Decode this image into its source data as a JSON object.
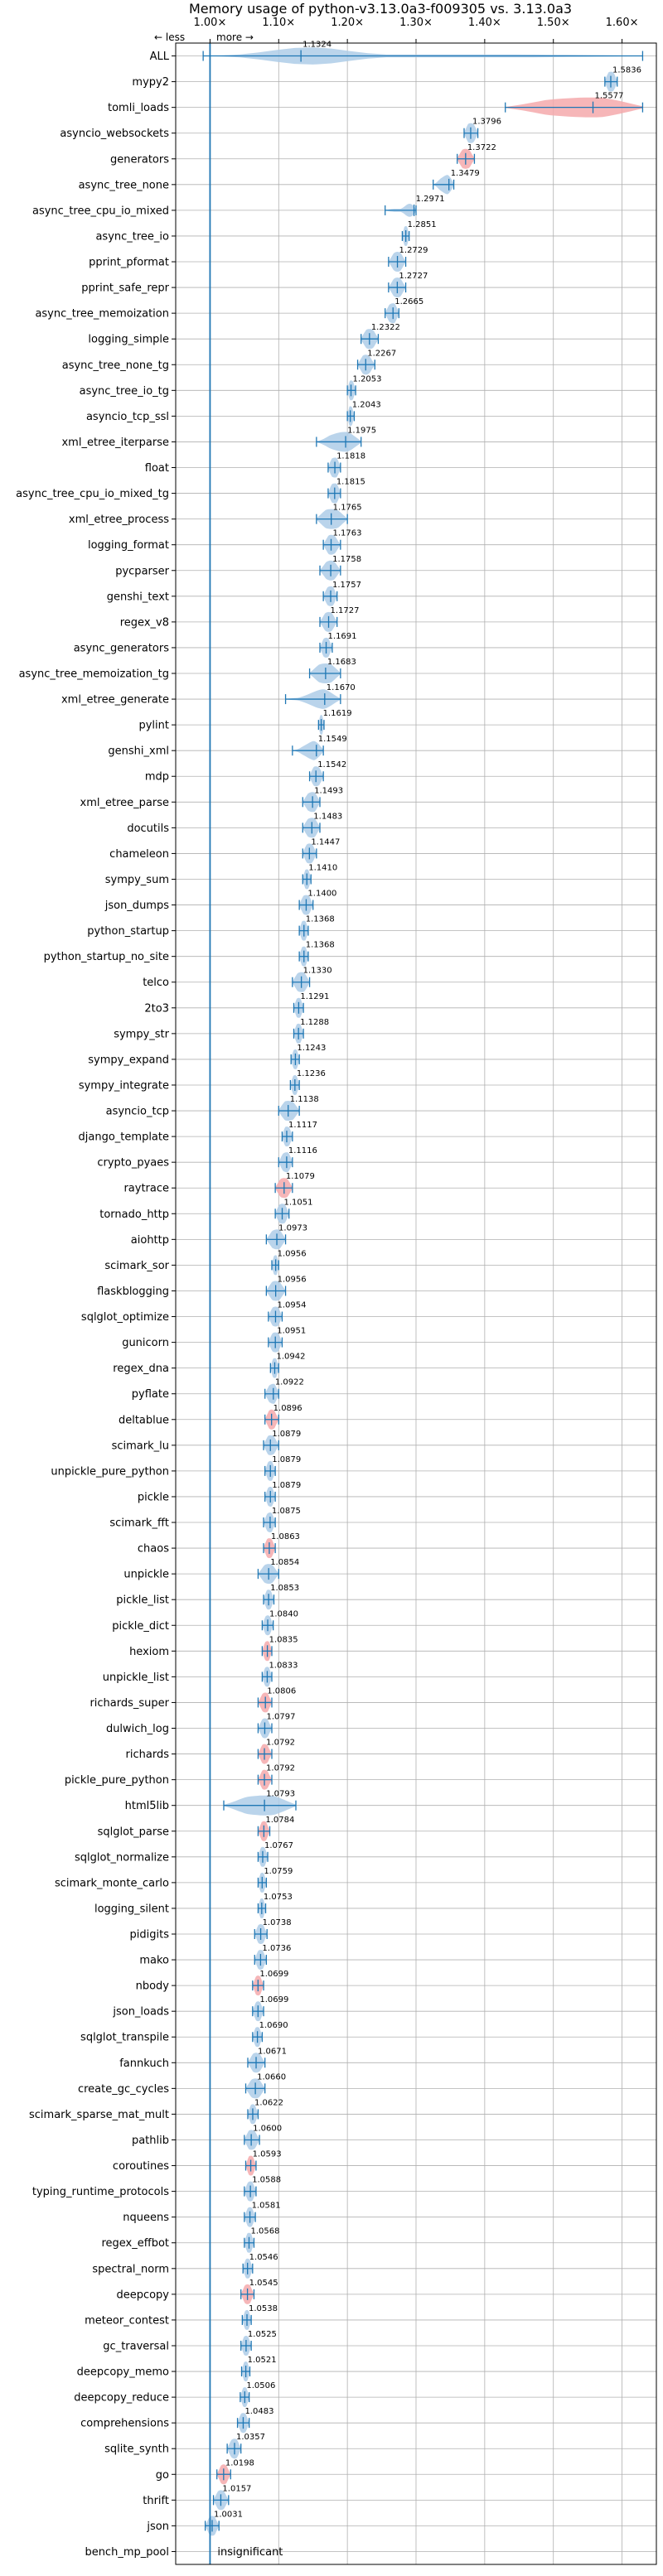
{
  "chart_data": {
    "type": "violin",
    "title": "Memory usage of python-v3.13.0a3-f009305 vs. 3.13.0a3",
    "xlim": [
      0.95,
      1.65
    ],
    "xticks": [
      1.0,
      1.1,
      1.2,
      1.3,
      1.4,
      1.5,
      1.6
    ],
    "xtick_labels": [
      "1.00×",
      "1.10×",
      "1.20×",
      "1.30×",
      "1.40×",
      "1.50×",
      "1.60×"
    ],
    "direction_labels": {
      "less": "← less",
      "more": "more →"
    },
    "grid": true,
    "reference_line": 1.0,
    "colors": {
      "faster": "#aecde8",
      "slower": "#f4a9ab",
      "median": "#1f77b4",
      "line": "#1f77b4"
    },
    "benchmarks": [
      {
        "name": "ALL",
        "value": 1.1324,
        "label": "1.1324",
        "min": 0.99,
        "max": 1.63,
        "spread": 0.06,
        "status": "better"
      },
      {
        "name": "mypy2",
        "value": 1.5836,
        "label": "1.5836",
        "min": 1.575,
        "max": 1.593,
        "spread": 0.01,
        "status": "better"
      },
      {
        "name": "tomli_loads",
        "value": 1.5577,
        "label": "1.5577",
        "min": 1.43,
        "max": 1.63,
        "spread": 0.09,
        "status": "worse"
      },
      {
        "name": "asyncio_websockets",
        "value": 1.3796,
        "label": "1.3796",
        "min": 1.37,
        "max": 1.39,
        "spread": 0.01,
        "status": "better"
      },
      {
        "name": "generators",
        "value": 1.3722,
        "label": "1.3722",
        "min": 1.36,
        "max": 1.385,
        "spread": 0.012,
        "status": "worse"
      },
      {
        "name": "async_tree_none",
        "value": 1.3479,
        "label": "1.3479",
        "min": 1.325,
        "max": 1.355,
        "spread": 0.012,
        "status": "better"
      },
      {
        "name": "async_tree_cpu_io_mixed",
        "value": 1.2971,
        "label": "1.2971",
        "min": 1.255,
        "max": 1.3,
        "spread": 0.01,
        "status": "better"
      },
      {
        "name": "async_tree_io",
        "value": 1.2851,
        "label": "1.2851",
        "min": 1.28,
        "max": 1.29,
        "spread": 0.005,
        "status": "better"
      },
      {
        "name": "pprint_pformat",
        "value": 1.2729,
        "label": "1.2729",
        "min": 1.26,
        "max": 1.285,
        "spread": 0.01,
        "status": "better"
      },
      {
        "name": "pprint_safe_repr",
        "value": 1.2727,
        "label": "1.2727",
        "min": 1.26,
        "max": 1.285,
        "spread": 0.01,
        "status": "better"
      },
      {
        "name": "async_tree_memoization",
        "value": 1.2665,
        "label": "1.2665",
        "min": 1.255,
        "max": 1.275,
        "spread": 0.01,
        "status": "better"
      },
      {
        "name": "logging_simple",
        "value": 1.2322,
        "label": "1.2322",
        "min": 1.22,
        "max": 1.245,
        "spread": 0.012,
        "status": "better"
      },
      {
        "name": "async_tree_none_tg",
        "value": 1.2267,
        "label": "1.2267",
        "min": 1.215,
        "max": 1.24,
        "spread": 0.01,
        "status": "better"
      },
      {
        "name": "async_tree_io_tg",
        "value": 1.2053,
        "label": "1.2053",
        "min": 1.2,
        "max": 1.212,
        "spread": 0.006,
        "status": "better"
      },
      {
        "name": "asyncio_tcp_ssl",
        "value": 1.2043,
        "label": "1.2043",
        "min": 1.2,
        "max": 1.21,
        "spread": 0.005,
        "status": "better"
      },
      {
        "name": "xml_etree_iterparse",
        "value": 1.1975,
        "label": "1.1975",
        "min": 1.155,
        "max": 1.22,
        "spread": 0.025,
        "status": "better"
      },
      {
        "name": "float",
        "value": 1.1818,
        "label": "1.1818",
        "min": 1.172,
        "max": 1.19,
        "spread": 0.01,
        "status": "better"
      },
      {
        "name": "async_tree_cpu_io_mixed_tg",
        "value": 1.1815,
        "label": "1.1815",
        "min": 1.172,
        "max": 1.19,
        "spread": 0.01,
        "status": "better"
      },
      {
        "name": "xml_etree_process",
        "value": 1.1765,
        "label": "1.1765",
        "min": 1.155,
        "max": 1.2,
        "spread": 0.02,
        "status": "better"
      },
      {
        "name": "logging_format",
        "value": 1.1763,
        "label": "1.1763",
        "min": 1.165,
        "max": 1.19,
        "spread": 0.01,
        "status": "better"
      },
      {
        "name": "pycparser",
        "value": 1.1758,
        "label": "1.1758",
        "min": 1.16,
        "max": 1.19,
        "spread": 0.012,
        "status": "better"
      },
      {
        "name": "genshi_text",
        "value": 1.1757,
        "label": "1.1757",
        "min": 1.165,
        "max": 1.185,
        "spread": 0.01,
        "status": "better"
      },
      {
        "name": "regex_v8",
        "value": 1.1727,
        "label": "1.1727",
        "min": 1.16,
        "max": 1.185,
        "spread": 0.01,
        "status": "better"
      },
      {
        "name": "async_generators",
        "value": 1.1691,
        "label": "1.1691",
        "min": 1.16,
        "max": 1.178,
        "spread": 0.008,
        "status": "better"
      },
      {
        "name": "async_tree_memoization_tg",
        "value": 1.1683,
        "label": "1.1683",
        "min": 1.145,
        "max": 1.19,
        "spread": 0.02,
        "status": "better"
      },
      {
        "name": "xml_etree_generate",
        "value": 1.167,
        "label": "1.1670",
        "min": 1.11,
        "max": 1.19,
        "spread": 0.02,
        "status": "better"
      },
      {
        "name": "pylint",
        "value": 1.1619,
        "label": "1.1619",
        "min": 1.158,
        "max": 1.166,
        "spread": 0.004,
        "status": "better"
      },
      {
        "name": "genshi_xml",
        "value": 1.1549,
        "label": "1.1549",
        "min": 1.12,
        "max": 1.165,
        "spread": 0.015,
        "status": "better"
      },
      {
        "name": "mdp",
        "value": 1.1542,
        "label": "1.1542",
        "min": 1.145,
        "max": 1.165,
        "spread": 0.01,
        "status": "better"
      },
      {
        "name": "xml_etree_parse",
        "value": 1.1493,
        "label": "1.1493",
        "min": 1.135,
        "max": 1.16,
        "spread": 0.012,
        "status": "better"
      },
      {
        "name": "docutils",
        "value": 1.1483,
        "label": "1.1483",
        "min": 1.135,
        "max": 1.16,
        "spread": 0.012,
        "status": "better"
      },
      {
        "name": "chameleon",
        "value": 1.1447,
        "label": "1.1447",
        "min": 1.135,
        "max": 1.155,
        "spread": 0.01,
        "status": "better"
      },
      {
        "name": "sympy_sum",
        "value": 1.141,
        "label": "1.1410",
        "min": 1.135,
        "max": 1.147,
        "spread": 0.006,
        "status": "better"
      },
      {
        "name": "json_dumps",
        "value": 1.14,
        "label": "1.1400",
        "min": 1.13,
        "max": 1.15,
        "spread": 0.01,
        "status": "better"
      },
      {
        "name": "python_startup",
        "value": 1.1368,
        "label": "1.1368",
        "min": 1.13,
        "max": 1.143,
        "spread": 0.007,
        "status": "better"
      },
      {
        "name": "python_startup_no_site",
        "value": 1.1368,
        "label": "1.1368",
        "min": 1.13,
        "max": 1.143,
        "spread": 0.007,
        "status": "better"
      },
      {
        "name": "telco",
        "value": 1.133,
        "label": "1.1330",
        "min": 1.12,
        "max": 1.145,
        "spread": 0.012,
        "status": "better"
      },
      {
        "name": "2to3",
        "value": 1.1291,
        "label": "1.1291",
        "min": 1.122,
        "max": 1.136,
        "spread": 0.007,
        "status": "better"
      },
      {
        "name": "sympy_str",
        "value": 1.1288,
        "label": "1.1288",
        "min": 1.122,
        "max": 1.136,
        "spread": 0.007,
        "status": "better"
      },
      {
        "name": "sympy_expand",
        "value": 1.1243,
        "label": "1.1243",
        "min": 1.118,
        "max": 1.13,
        "spread": 0.006,
        "status": "better"
      },
      {
        "name": "sympy_integrate",
        "value": 1.1236,
        "label": "1.1236",
        "min": 1.117,
        "max": 1.13,
        "spread": 0.006,
        "status": "better"
      },
      {
        "name": "asyncio_tcp",
        "value": 1.1138,
        "label": "1.1138",
        "min": 1.1,
        "max": 1.13,
        "spread": 0.015,
        "status": "better"
      },
      {
        "name": "django_template",
        "value": 1.1117,
        "label": "1.1117",
        "min": 1.105,
        "max": 1.12,
        "spread": 0.008,
        "status": "better"
      },
      {
        "name": "crypto_pyaes",
        "value": 1.1116,
        "label": "1.1116",
        "min": 1.1,
        "max": 1.12,
        "spread": 0.01,
        "status": "better"
      },
      {
        "name": "raytrace",
        "value": 1.1079,
        "label": "1.1079",
        "min": 1.095,
        "max": 1.12,
        "spread": 0.012,
        "status": "worse"
      },
      {
        "name": "tornado_http",
        "value": 1.1051,
        "label": "1.1051",
        "min": 1.095,
        "max": 1.115,
        "spread": 0.01,
        "status": "better"
      },
      {
        "name": "aiohttp",
        "value": 1.0973,
        "label": "1.0973",
        "min": 1.082,
        "max": 1.11,
        "spread": 0.012,
        "status": "better"
      },
      {
        "name": "scimark_sor",
        "value": 1.0956,
        "label": "1.0956",
        "min": 1.09,
        "max": 1.1,
        "spread": 0.006,
        "status": "better"
      },
      {
        "name": "flaskblogging",
        "value": 1.0956,
        "label": "1.0956",
        "min": 1.082,
        "max": 1.11,
        "spread": 0.012,
        "status": "better"
      },
      {
        "name": "sqlglot_optimize",
        "value": 1.0954,
        "label": "1.0954",
        "min": 1.085,
        "max": 1.105,
        "spread": 0.01,
        "status": "better"
      },
      {
        "name": "gunicorn",
        "value": 1.0951,
        "label": "1.0951",
        "min": 1.085,
        "max": 1.105,
        "spread": 0.01,
        "status": "better"
      },
      {
        "name": "regex_dna",
        "value": 1.0942,
        "label": "1.0942",
        "min": 1.088,
        "max": 1.1,
        "spread": 0.006,
        "status": "better"
      },
      {
        "name": "pyflate",
        "value": 1.0922,
        "label": "1.0922",
        "min": 1.08,
        "max": 1.1,
        "spread": 0.01,
        "status": "better"
      },
      {
        "name": "deltablue",
        "value": 1.0896,
        "label": "1.0896",
        "min": 1.08,
        "max": 1.1,
        "spread": 0.008,
        "status": "worse"
      },
      {
        "name": "scimark_lu",
        "value": 1.0879,
        "label": "1.0879",
        "min": 1.078,
        "max": 1.1,
        "spread": 0.01,
        "status": "better"
      },
      {
        "name": "unpickle_pure_python",
        "value": 1.0879,
        "label": "1.0879",
        "min": 1.08,
        "max": 1.095,
        "spread": 0.007,
        "status": "better"
      },
      {
        "name": "pickle",
        "value": 1.0879,
        "label": "1.0879",
        "min": 1.08,
        "max": 1.095,
        "spread": 0.007,
        "status": "better"
      },
      {
        "name": "scimark_fft",
        "value": 1.0875,
        "label": "1.0875",
        "min": 1.078,
        "max": 1.095,
        "spread": 0.008,
        "status": "better"
      },
      {
        "name": "chaos",
        "value": 1.0863,
        "label": "1.0863",
        "min": 1.078,
        "max": 1.095,
        "spread": 0.008,
        "status": "worse"
      },
      {
        "name": "unpickle",
        "value": 1.0854,
        "label": "1.0854",
        "min": 1.07,
        "max": 1.1,
        "spread": 0.012,
        "status": "better"
      },
      {
        "name": "pickle_list",
        "value": 1.0853,
        "label": "1.0853",
        "min": 1.078,
        "max": 1.093,
        "spread": 0.007,
        "status": "better"
      },
      {
        "name": "pickle_dict",
        "value": 1.084,
        "label": "1.0840",
        "min": 1.076,
        "max": 1.092,
        "spread": 0.007,
        "status": "better"
      },
      {
        "name": "hexiom",
        "value": 1.0835,
        "label": "1.0835",
        "min": 1.076,
        "max": 1.09,
        "spread": 0.007,
        "status": "worse"
      },
      {
        "name": "unpickle_list",
        "value": 1.0833,
        "label": "1.0833",
        "min": 1.076,
        "max": 1.09,
        "spread": 0.007,
        "status": "better"
      },
      {
        "name": "richards_super",
        "value": 1.0806,
        "label": "1.0806",
        "min": 1.07,
        "max": 1.09,
        "spread": 0.008,
        "status": "worse"
      },
      {
        "name": "dulwich_log",
        "value": 1.0797,
        "label": "1.0797",
        "min": 1.07,
        "max": 1.09,
        "spread": 0.008,
        "status": "better"
      },
      {
        "name": "richards",
        "value": 1.0792,
        "label": "1.0792",
        "min": 1.07,
        "max": 1.09,
        "spread": 0.008,
        "status": "worse"
      },
      {
        "name": "pickle_pure_python",
        "value": 1.0792,
        "label": "1.0792",
        "min": 1.07,
        "max": 1.09,
        "spread": 0.008,
        "status": "worse"
      },
      {
        "name": "html5lib",
        "value": 1.0793,
        "label": "1.0793",
        "min": 1.02,
        "max": 1.125,
        "spread": 0.045,
        "status": "better"
      },
      {
        "name": "sqlglot_parse",
        "value": 1.0784,
        "label": "1.0784",
        "min": 1.07,
        "max": 1.087,
        "spread": 0.007,
        "status": "worse"
      },
      {
        "name": "sqlglot_normalize",
        "value": 1.0767,
        "label": "1.0767",
        "min": 1.07,
        "max": 1.084,
        "spread": 0.007,
        "status": "better"
      },
      {
        "name": "scimark_monte_carlo",
        "value": 1.0759,
        "label": "1.0759",
        "min": 1.07,
        "max": 1.082,
        "spread": 0.006,
        "status": "better"
      },
      {
        "name": "logging_silent",
        "value": 1.0753,
        "label": "1.0753",
        "min": 1.07,
        "max": 1.081,
        "spread": 0.006,
        "status": "better"
      },
      {
        "name": "pidigits",
        "value": 1.0738,
        "label": "1.0738",
        "min": 1.065,
        "max": 1.083,
        "spread": 0.008,
        "status": "better"
      },
      {
        "name": "mako",
        "value": 1.0736,
        "label": "1.0736",
        "min": 1.065,
        "max": 1.082,
        "spread": 0.008,
        "status": "better"
      },
      {
        "name": "nbody",
        "value": 1.0699,
        "label": "1.0699",
        "min": 1.062,
        "max": 1.078,
        "spread": 0.007,
        "status": "worse"
      },
      {
        "name": "json_loads",
        "value": 1.0699,
        "label": "1.0699",
        "min": 1.062,
        "max": 1.078,
        "spread": 0.007,
        "status": "better"
      },
      {
        "name": "sqlglot_transpile",
        "value": 1.069,
        "label": "1.0690",
        "min": 1.062,
        "max": 1.076,
        "spread": 0.007,
        "status": "better"
      },
      {
        "name": "fannkuch",
        "value": 1.0671,
        "label": "1.0671",
        "min": 1.055,
        "max": 1.08,
        "spread": 0.01,
        "status": "better"
      },
      {
        "name": "create_gc_cycles",
        "value": 1.066,
        "label": "1.0660",
        "min": 1.052,
        "max": 1.08,
        "spread": 0.012,
        "status": "better"
      },
      {
        "name": "scimark_sparse_mat_mult",
        "value": 1.0622,
        "label": "1.0622",
        "min": 1.055,
        "max": 1.07,
        "spread": 0.007,
        "status": "better"
      },
      {
        "name": "pathlib",
        "value": 1.06,
        "label": "1.0600",
        "min": 1.05,
        "max": 1.072,
        "spread": 0.01,
        "status": "better"
      },
      {
        "name": "coroutines",
        "value": 1.0593,
        "label": "1.0593",
        "min": 1.052,
        "max": 1.067,
        "spread": 0.007,
        "status": "worse"
      },
      {
        "name": "typing_runtime_protocols",
        "value": 1.0588,
        "label": "1.0588",
        "min": 1.05,
        "max": 1.067,
        "spread": 0.008,
        "status": "better"
      },
      {
        "name": "nqueens",
        "value": 1.0581,
        "label": "1.0581",
        "min": 1.05,
        "max": 1.066,
        "spread": 0.007,
        "status": "better"
      },
      {
        "name": "regex_effbot",
        "value": 1.0568,
        "label": "1.0568",
        "min": 1.05,
        "max": 1.064,
        "spread": 0.007,
        "status": "better"
      },
      {
        "name": "spectral_norm",
        "value": 1.0546,
        "label": "1.0546",
        "min": 1.048,
        "max": 1.062,
        "spread": 0.007,
        "status": "better"
      },
      {
        "name": "deepcopy",
        "value": 1.0545,
        "label": "1.0545",
        "min": 1.045,
        "max": 1.064,
        "spread": 0.008,
        "status": "worse"
      },
      {
        "name": "meteor_contest",
        "value": 1.0538,
        "label": "1.0538",
        "min": 1.047,
        "max": 1.06,
        "spread": 0.006,
        "status": "better"
      },
      {
        "name": "gc_traversal",
        "value": 1.0525,
        "label": "1.0525",
        "min": 1.045,
        "max": 1.06,
        "spread": 0.007,
        "status": "better"
      },
      {
        "name": "deepcopy_memo",
        "value": 1.0521,
        "label": "1.0521",
        "min": 1.046,
        "max": 1.058,
        "spread": 0.006,
        "status": "better"
      },
      {
        "name": "deepcopy_reduce",
        "value": 1.0506,
        "label": "1.0506",
        "min": 1.044,
        "max": 1.057,
        "spread": 0.006,
        "status": "better"
      },
      {
        "name": "comprehensions",
        "value": 1.0483,
        "label": "1.0483",
        "min": 1.04,
        "max": 1.057,
        "spread": 0.008,
        "status": "better"
      },
      {
        "name": "sqlite_synth",
        "value": 1.0357,
        "label": "1.0357",
        "min": 1.025,
        "max": 1.045,
        "spread": 0.009,
        "status": "better"
      },
      {
        "name": "go",
        "value": 1.0198,
        "label": "1.0198",
        "min": 1.01,
        "max": 1.03,
        "spread": 0.008,
        "status": "worse"
      },
      {
        "name": "thrift",
        "value": 1.0157,
        "label": "1.0157",
        "min": 1.005,
        "max": 1.027,
        "spread": 0.009,
        "status": "better"
      },
      {
        "name": "json",
        "value": 1.0031,
        "label": "1.0031",
        "min": 0.993,
        "max": 1.013,
        "spread": 0.008,
        "status": "better"
      },
      {
        "name": "bench_mp_pool",
        "value": null,
        "label": "insignificant",
        "status": "insignificant"
      }
    ]
  }
}
